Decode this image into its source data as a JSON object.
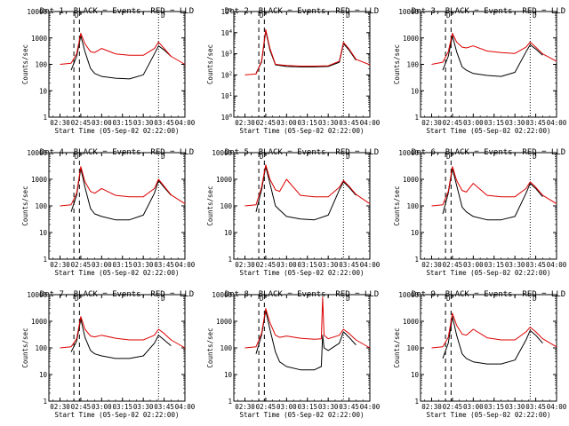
{
  "figure": {
    "ylabel": "Counts/sec",
    "xlabel": "Start Time (05-Sep-02 02:22:00)",
    "colors": {
      "events": "#000000",
      "lld": "#dd0000",
      "frame": "#000000",
      "background": "#ffffff"
    },
    "time_ticks": [
      "02:30",
      "02:45",
      "03:00",
      "03:15",
      "03:30",
      "03:45",
      "04:00"
    ],
    "marker_labels": {
      "left": "D",
      "right": "D"
    }
  },
  "chart_data": [
    {
      "type": "line",
      "title": "Det 1, BLACK = Events, RED = LLD",
      "xlabel": "Start Time (05-Sep-02 02:22:00)",
      "ylabel": "Counts/sec",
      "y_ticks": [
        "1",
        "10",
        "100",
        "1000",
        "10000"
      ],
      "ylim": [
        1,
        10000
      ],
      "yscale": "log",
      "x": [
        "02:30",
        "02:38",
        "02:42",
        "02:45",
        "02:48",
        "02:52",
        "02:55",
        "03:00",
        "03:10",
        "03:20",
        "03:30",
        "03:38",
        "03:41",
        "03:45",
        "03:50",
        "04:00"
      ],
      "series": [
        {
          "name": "BLACK = Events",
          "values": [
            null,
            60,
            200,
            1200,
            300,
            70,
            45,
            35,
            30,
            28,
            40,
            250,
            500,
            350,
            200,
            null
          ]
        },
        {
          "name": "RED = LLD",
          "values": [
            100,
            110,
            250,
            1500,
            600,
            300,
            280,
            400,
            250,
            220,
            220,
            400,
            700,
            400,
            200,
            100
          ]
        }
      ]
    },
    {
      "type": "line",
      "title": "Det 2, BLACK = Events, RED = LLD",
      "xlabel": "Start Time (05-Sep-02 02:22:00)",
      "ylabel": "Counts/sec",
      "y_ticks": [
        "10^0",
        "10^1",
        "10^2",
        "10^3",
        "10^4",
        "10^5"
      ],
      "ylim": [
        1,
        100000
      ],
      "yscale": "log",
      "x": [
        "02:30",
        "02:38",
        "02:42",
        "02:45",
        "02:48",
        "02:52",
        "02:55",
        "03:00",
        "03:10",
        "03:20",
        "03:30",
        "03:38",
        "03:41",
        "03:45",
        "03:50",
        "04:00"
      ],
      "series": [
        {
          "name": "BLACK = Events",
          "values": [
            null,
            120,
            400,
            12000,
            1500,
            300,
            280,
            250,
            240,
            240,
            250,
            400,
            3000,
            1500,
            500,
            null
          ]
        },
        {
          "name": "RED = LLD",
          "values": [
            100,
            110,
            450,
            14000,
            1800,
            320,
            300,
            280,
            260,
            260,
            270,
            450,
            3500,
            1700,
            550,
            300
          ]
        }
      ]
    },
    {
      "type": "line",
      "title": "Det 3, BLACK = Events, RED = LLD",
      "xlabel": "Start Time (05-Sep-02 02:22:00)",
      "ylabel": "Counts/sec",
      "y_ticks": [
        "1",
        "10",
        "100",
        "1000",
        "10000"
      ],
      "ylim": [
        1,
        10000
      ],
      "yscale": "log",
      "x": [
        "02:30",
        "02:38",
        "02:42",
        "02:45",
        "02:48",
        "02:52",
        "02:55",
        "03:00",
        "03:10",
        "03:20",
        "03:30",
        "03:38",
        "03:41",
        "03:45",
        "03:50",
        "04:00"
      ],
      "series": [
        {
          "name": "BLACK = Events",
          "values": [
            null,
            60,
            200,
            1200,
            300,
            80,
            60,
            45,
            38,
            35,
            50,
            300,
            550,
            380,
            220,
            null
          ]
        },
        {
          "name": "RED = LLD",
          "values": [
            100,
            120,
            300,
            1500,
            700,
            450,
            420,
            500,
            320,
            280,
            260,
            450,
            700,
            450,
            250,
            130
          ]
        }
      ]
    },
    {
      "type": "line",
      "title": "Det 4, BLACK = Events, RED = LLD",
      "xlabel": "Start Time (05-Sep-02 02:22:00)",
      "ylabel": "Counts/sec",
      "y_ticks": [
        "1",
        "10",
        "100",
        "1000",
        "10000"
      ],
      "ylim": [
        1,
        10000
      ],
      "yscale": "log",
      "x": [
        "02:30",
        "02:38",
        "02:42",
        "02:45",
        "02:48",
        "02:52",
        "02:55",
        "03:00",
        "03:10",
        "03:20",
        "03:30",
        "03:38",
        "03:41",
        "03:45",
        "03:50",
        "04:00"
      ],
      "series": [
        {
          "name": "BLACK = Events",
          "values": [
            null,
            60,
            250,
            2500,
            500,
            80,
            50,
            40,
            30,
            30,
            45,
            300,
            900,
            500,
            250,
            null
          ]
        },
        {
          "name": "RED = LLD",
          "values": [
            100,
            110,
            300,
            3000,
            800,
            350,
            300,
            450,
            250,
            220,
            220,
            450,
            1000,
            550,
            260,
            120
          ]
        }
      ]
    },
    {
      "type": "line",
      "title": "Det 5, BLACK = Events, RED = LLD",
      "xlabel": "Start Time (05-Sep-02 02:22:00)",
      "ylabel": "Counts/sec",
      "y_ticks": [
        "1",
        "10",
        "100",
        "1000",
        "10000"
      ],
      "ylim": [
        1,
        10000
      ],
      "yscale": "log",
      "x": [
        "02:30",
        "02:38",
        "02:42",
        "02:45",
        "02:48",
        "02:52",
        "02:55",
        "03:00",
        "03:10",
        "03:20",
        "03:30",
        "03:38",
        "03:41",
        "03:45",
        "03:50",
        "04:00"
      ],
      "series": [
        {
          "name": "BLACK = Events",
          "values": [
            null,
            60,
            400,
            3000,
            700,
            100,
            70,
            40,
            32,
            30,
            45,
            400,
            800,
            500,
            250,
            null
          ]
        },
        {
          "name": "RED = LLD",
          "values": [
            100,
            110,
            500,
            3500,
            1000,
            400,
            350,
            1000,
            250,
            220,
            220,
            500,
            900,
            550,
            270,
            120
          ]
        }
      ]
    },
    {
      "type": "line",
      "title": "Det 6, BLACK = Events, RED = LLD",
      "xlabel": "Start Time (05-Sep-02 02:22:00)",
      "ylabel": "Counts/sec",
      "y_ticks": [
        "1",
        "10",
        "100",
        "1000",
        "10000"
      ],
      "ylim": [
        1,
        10000
      ],
      "yscale": "log",
      "x": [
        "02:30",
        "02:38",
        "02:42",
        "02:45",
        "02:48",
        "02:52",
        "02:55",
        "03:00",
        "03:10",
        "03:20",
        "03:30",
        "03:38",
        "03:41",
        "03:45",
        "03:50",
        "04:00"
      ],
      "series": [
        {
          "name": "BLACK = Events",
          "values": [
            null,
            50,
            300,
            2500,
            600,
            90,
            60,
            40,
            30,
            30,
            40,
            300,
            700,
            450,
            220,
            null
          ]
        },
        {
          "name": "RED = LLD",
          "values": [
            100,
            110,
            350,
            3000,
            900,
            380,
            330,
            700,
            250,
            220,
            220,
            450,
            800,
            500,
            250,
            120
          ]
        }
      ]
    },
    {
      "type": "line",
      "title": "Det 7, BLACK = Events, RED = LLD",
      "xlabel": "Start Time (05-Sep-02 02:22:00)",
      "ylabel": "Counts/sec",
      "y_ticks": [
        "1",
        "10",
        "100",
        "1000",
        "10000"
      ],
      "ylim": [
        1,
        10000
      ],
      "yscale": "log",
      "x": [
        "02:30",
        "02:38",
        "02:42",
        "02:45",
        "02:48",
        "02:52",
        "02:55",
        "03:00",
        "03:10",
        "03:20",
        "03:30",
        "03:38",
        "03:41",
        "03:45",
        "03:50",
        "04:00"
      ],
      "series": [
        {
          "name": "BLACK = Events",
          "values": [
            null,
            70,
            180,
            1200,
            250,
            80,
            60,
            50,
            40,
            40,
            50,
            150,
            300,
            200,
            120,
            null
          ]
        },
        {
          "name": "RED = LLD",
          "values": [
            100,
            110,
            220,
            1500,
            500,
            280,
            260,
            300,
            230,
            200,
            200,
            300,
            500,
            350,
            200,
            100
          ]
        }
      ]
    },
    {
      "type": "line",
      "title": "Det 8, BLACK = Events, RED = LLD",
      "xlabel": "Start Time (05-Sep-02 02:22:00)",
      "ylabel": "Counts/sec",
      "y_ticks": [
        "1",
        "10",
        "100",
        "1000",
        "10000"
      ],
      "ylim": [
        1,
        10000
      ],
      "yscale": "log",
      "x": [
        "02:30",
        "02:38",
        "02:42",
        "02:45",
        "02:48",
        "02:52",
        "02:55",
        "03:00",
        "03:10",
        "03:20",
        "03:25",
        "03:26",
        "03:27",
        "03:30",
        "03:38",
        "03:41",
        "03:45",
        "03:50",
        "04:00"
      ],
      "series": [
        {
          "name": "BLACK = Events",
          "values": [
            null,
            60,
            300,
            2500,
            500,
            70,
            30,
            20,
            15,
            15,
            20,
            300,
            100,
            80,
            150,
            400,
            250,
            130,
            null
          ]
        },
        {
          "name": "RED = LLD",
          "values": [
            100,
            110,
            350,
            3000,
            900,
            300,
            250,
            280,
            230,
            210,
            220,
            8000,
            300,
            220,
            300,
            500,
            350,
            200,
            100
          ]
        }
      ]
    },
    {
      "type": "line",
      "title": "Det 9, BLACK = Events, RED = LLD",
      "xlabel": "Start Time (05-Sep-02 02:22:00)",
      "ylabel": "Counts/sec",
      "y_ticks": [
        "1",
        "10",
        "100",
        "1000",
        "10000"
      ],
      "ylim": [
        1,
        10000
      ],
      "yscale": "log",
      "x": [
        "02:30",
        "02:38",
        "02:42",
        "02:45",
        "02:48",
        "02:52",
        "02:55",
        "03:00",
        "03:10",
        "03:20",
        "03:30",
        "03:38",
        "03:41",
        "03:45",
        "03:50",
        "04:00"
      ],
      "series": [
        {
          "name": "BLACK = Events",
          "values": [
            null,
            40,
            150,
            1500,
            300,
            60,
            40,
            30,
            25,
            25,
            35,
            200,
            450,
            300,
            150,
            null
          ]
        },
        {
          "name": "RED = LLD",
          "values": [
            100,
            110,
            250,
            2000,
            700,
            330,
            300,
            500,
            240,
            200,
            200,
            400,
            600,
            400,
            220,
            110
          ]
        }
      ]
    }
  ]
}
